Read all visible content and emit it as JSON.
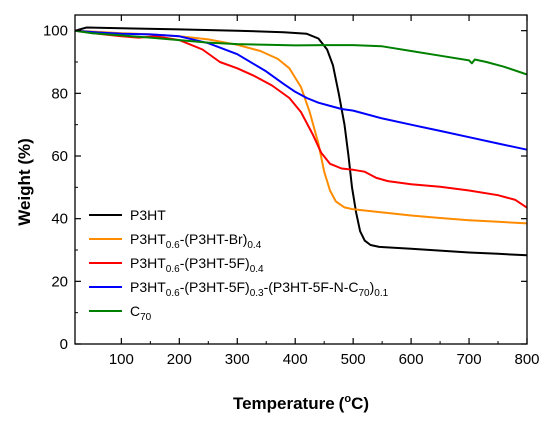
{
  "chart_data": {
    "type": "line",
    "xlabel": "Temperature",
    "xlabel_unit_prefix": "(",
    "xlabel_unit_sup": "o",
    "xlabel_unit_suffix": "C)",
    "ylabel": "Weight  (%)",
    "xlim": [
      20,
      800
    ],
    "ylim": [
      0,
      105
    ],
    "x_ticks": [
      100,
      200,
      300,
      400,
      500,
      600,
      700,
      800
    ],
    "y_ticks": [
      0,
      20,
      40,
      60,
      80,
      100
    ],
    "grid": false,
    "legend_position": "bottom-left",
    "series": [
      {
        "name": "P3HT",
        "legend_parts": [
          {
            "t": "P3HT",
            "s": false
          }
        ],
        "color": "#000000",
        "points": [
          [
            20,
            100
          ],
          [
            40,
            101
          ],
          [
            100,
            100.8
          ],
          [
            200,
            100.4
          ],
          [
            300,
            100
          ],
          [
            380,
            99.5
          ],
          [
            420,
            99
          ],
          [
            440,
            97.5
          ],
          [
            455,
            94
          ],
          [
            465,
            89
          ],
          [
            475,
            80
          ],
          [
            485,
            70
          ],
          [
            492,
            60
          ],
          [
            498,
            50
          ],
          [
            505,
            42
          ],
          [
            512,
            36
          ],
          [
            520,
            33
          ],
          [
            530,
            31.6
          ],
          [
            545,
            31
          ],
          [
            600,
            30.4
          ],
          [
            650,
            29.8
          ],
          [
            700,
            29.2
          ],
          [
            750,
            28.8
          ],
          [
            800,
            28.3
          ]
        ]
      },
      {
        "name": "P3HT0.6-(P3HT-Br)0.4",
        "legend_parts": [
          {
            "t": "P3HT",
            "s": false
          },
          {
            "t": "0.6",
            "s": true
          },
          {
            "t": "-(P3HT-Br)",
            "s": false
          },
          {
            "t": "0.4",
            "s": true
          }
        ],
        "color": "#ff8c00",
        "points": [
          [
            20,
            100
          ],
          [
            60,
            99.6
          ],
          [
            100,
            99.2
          ],
          [
            150,
            98.8
          ],
          [
            200,
            98.2
          ],
          [
            250,
            97.2
          ],
          [
            300,
            95.5
          ],
          [
            340,
            93.5
          ],
          [
            370,
            91
          ],
          [
            390,
            88
          ],
          [
            410,
            82
          ],
          [
            425,
            74
          ],
          [
            440,
            64
          ],
          [
            450,
            55
          ],
          [
            460,
            49
          ],
          [
            470,
            45.5
          ],
          [
            485,
            43.6
          ],
          [
            500,
            43
          ],
          [
            550,
            42
          ],
          [
            600,
            41
          ],
          [
            650,
            40.2
          ],
          [
            700,
            39.5
          ],
          [
            750,
            39
          ],
          [
            800,
            38.5
          ]
        ]
      },
      {
        "name": "P3HT0.6-(P3HT-5F)0.4",
        "legend_parts": [
          {
            "t": "P3HT",
            "s": false
          },
          {
            "t": "0.6",
            "s": true
          },
          {
            "t": "-(P3HT-5F)",
            "s": false
          },
          {
            "t": "0.4",
            "s": true
          }
        ],
        "color": "#ff0000",
        "points": [
          [
            20,
            100
          ],
          [
            60,
            99
          ],
          [
            100,
            98.2
          ],
          [
            130,
            97.8
          ],
          [
            160,
            98.2
          ],
          [
            200,
            97
          ],
          [
            240,
            94
          ],
          [
            270,
            90
          ],
          [
            300,
            88
          ],
          [
            330,
            85.5
          ],
          [
            360,
            82.5
          ],
          [
            390,
            78.5
          ],
          [
            410,
            74
          ],
          [
            430,
            67
          ],
          [
            445,
            61
          ],
          [
            460,
            57.5
          ],
          [
            480,
            56
          ],
          [
            500,
            55.6
          ],
          [
            520,
            55
          ],
          [
            540,
            53
          ],
          [
            560,
            52
          ],
          [
            600,
            51
          ],
          [
            650,
            50.2
          ],
          [
            700,
            49
          ],
          [
            750,
            47.5
          ],
          [
            780,
            46
          ],
          [
            800,
            43.5
          ]
        ]
      },
      {
        "name": "P3HT0.6-(P3HT-5F)0.3-(P3HT-5F-N-C70)0.1",
        "legend_parts": [
          {
            "t": "P3HT",
            "s": false
          },
          {
            "t": "0.6",
            "s": true
          },
          {
            "t": "-(P3HT-5F)",
            "s": false
          },
          {
            "t": "0.3",
            "s": true
          },
          {
            "t": "-(P3HT-5F-N-C",
            "s": false
          },
          {
            "t": "70",
            "s": true
          },
          {
            "t": ")",
            "s": false
          },
          {
            "t": "0.1",
            "s": true
          }
        ],
        "color": "#0000ff",
        "points": [
          [
            20,
            100
          ],
          [
            60,
            99.4
          ],
          [
            100,
            99
          ],
          [
            150,
            98.8
          ],
          [
            200,
            98.2
          ],
          [
            250,
            96
          ],
          [
            300,
            92.5
          ],
          [
            350,
            87
          ],
          [
            380,
            83
          ],
          [
            400,
            80.5
          ],
          [
            420,
            78.5
          ],
          [
            440,
            77
          ],
          [
            460,
            76
          ],
          [
            480,
            75
          ],
          [
            500,
            74.5
          ],
          [
            550,
            72
          ],
          [
            600,
            70
          ],
          [
            650,
            68
          ],
          [
            700,
            66
          ],
          [
            750,
            64
          ],
          [
            800,
            62
          ]
        ]
      },
      {
        "name": "C70",
        "legend_parts": [
          {
            "t": "C",
            "s": false
          },
          {
            "t": "70",
            "s": true
          }
        ],
        "color": "#008000",
        "points": [
          [
            20,
            100
          ],
          [
            50,
            99.2
          ],
          [
            100,
            98.5
          ],
          [
            150,
            97.8
          ],
          [
            200,
            97
          ],
          [
            250,
            96.2
          ],
          [
            300,
            95.7
          ],
          [
            350,
            95.5
          ],
          [
            400,
            95.3
          ],
          [
            450,
            95.4
          ],
          [
            500,
            95.4
          ],
          [
            550,
            95
          ],
          [
            600,
            93.5
          ],
          [
            650,
            92
          ],
          [
            700,
            90.5
          ],
          [
            705,
            89.6
          ],
          [
            710,
            90.8
          ],
          [
            730,
            90
          ],
          [
            760,
            88.5
          ],
          [
            800,
            86
          ]
        ]
      }
    ]
  }
}
